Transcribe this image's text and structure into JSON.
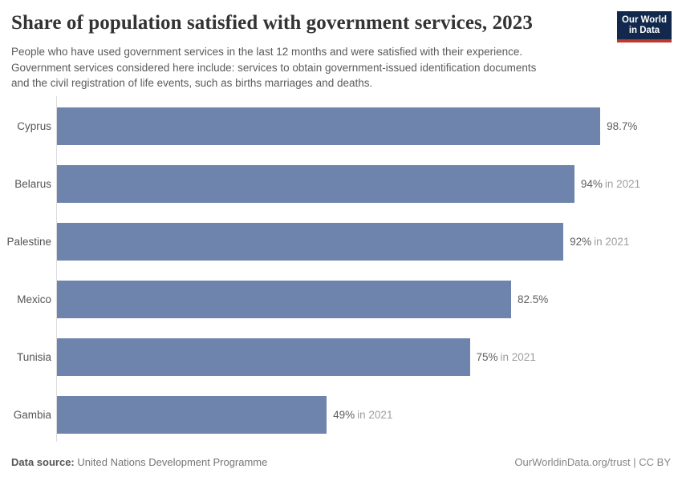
{
  "header": {
    "title": "Share of population satisfied with government services, 2023",
    "subtitle_lines": [
      "People who have used government services in the last 12 months and were satisfied with their experience.",
      "Government services considered here include: services to obtain government-issued identification documents",
      "and the civil registration of life events, such as births marriages and deaths."
    ],
    "logo": {
      "line1": "Our World",
      "line2": "in Data"
    }
  },
  "chart_data": {
    "type": "bar",
    "orientation": "horizontal",
    "title": "Share of population satisfied with government services, 2023",
    "categories": [
      "Cyprus",
      "Belarus",
      "Palestine",
      "Mexico",
      "Tunisia",
      "Gambia"
    ],
    "values": [
      98.7,
      94,
      92,
      82.5,
      75,
      49
    ],
    "value_labels": [
      "98.7%",
      "94%",
      "92%",
      "82.5%",
      "75%",
      "49%"
    ],
    "value_suffixes": [
      "",
      "in 2021",
      "in 2021",
      "",
      "in 2021",
      "in 2021"
    ],
    "unit": "%",
    "xlim": [
      0,
      100
    ],
    "grid": false,
    "legend": false,
    "bar_color": "#6e84ac"
  },
  "footer": {
    "source_label": "Data source:",
    "source_value": "United Nations Development Programme",
    "attribution": "OurWorldinData.org/trust | CC BY"
  },
  "colors": {
    "bar": "#6e84ac",
    "logo_navy": "#12294d",
    "logo_red": "#bc3a2c",
    "title_text": "#333333",
    "subtitle_text": "#5b5b5b",
    "axis_line": "#dcdcdc",
    "value_text": "#5f5f5f",
    "value_suffix_text": "#9e9e9e"
  }
}
